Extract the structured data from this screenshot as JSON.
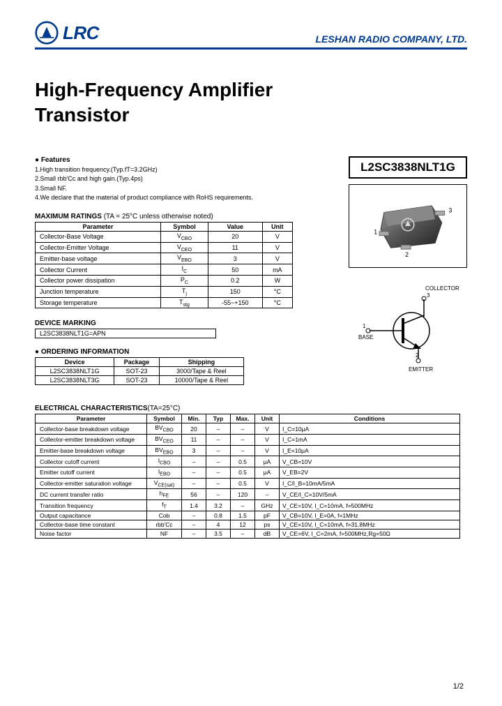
{
  "header": {
    "logo_text": "LRC",
    "company": "LESHAN RADIO COMPANY, LTD."
  },
  "title_line1": "High-Frequency Amplifier",
  "title_line2": "Transistor",
  "part_number": "L2SC3838NLT1G",
  "features": {
    "heading": "● Features",
    "items": [
      "1.High transition frequency.(Typ.fT=3.2GHz)",
      "2.Small rbb'Cc and high gain.(Typ.4ps)",
      "3.Small NF.",
      "4.We declare that the material of product compliance with RoHS requirements."
    ]
  },
  "max_ratings": {
    "heading": "MAXIMUM RATINGS",
    "note": " (TA = 25°C unless otherwise noted)",
    "cols": [
      "Parameter",
      "Symbol",
      "Value",
      "Unit"
    ],
    "rows": [
      [
        "Collector-Base Voltage",
        "V_CBO",
        "20",
        "V"
      ],
      [
        "Collector-Emitter Voltage",
        "V_CEO",
        "11",
        "V"
      ],
      [
        "Emitter-base voltage",
        "V_EBO",
        "3",
        "V"
      ],
      [
        "Collector Current",
        "I_C",
        "50",
        "mA"
      ],
      [
        "Collector power dissipation",
        "P_C",
        "0.2",
        "W"
      ],
      [
        "Junction temperature",
        "T_j",
        "150",
        "°C"
      ],
      [
        "Storage temperature",
        "T_stg",
        "-55~+150",
        "°C"
      ]
    ]
  },
  "device_marking": {
    "heading": "DEVICE MARKING",
    "value": "L2SC3838NLT1G=APN"
  },
  "ordering": {
    "heading": "● ORDERING INFORMATION",
    "cols": [
      "Device",
      "Package",
      "Shipping"
    ],
    "rows": [
      [
        "L2SC3838NLT1G",
        "SOT-23",
        "3000/Tape & Reel"
      ],
      [
        "L2SC3838NLT3G",
        "SOT-23",
        "10000/Tape & Reel"
      ]
    ]
  },
  "electrical": {
    "heading": "ELECTRICAL CHARACTERISTICS",
    "note": "(TA=25°C)",
    "cols": [
      "Parameter",
      "Symbol",
      "Min.",
      "Typ",
      "Max.",
      "Unit",
      "Conditions"
    ],
    "rows": [
      [
        "Collector-base breakdown voltage",
        "BV_CBO",
        "20",
        "–",
        "–",
        "V",
        "I_C=10μA"
      ],
      [
        "Collector-emitter breakdown voltage",
        "BV_CEO",
        "11",
        "–",
        "–",
        "V",
        "I_C=1mA"
      ],
      [
        "Emitter-base breakdown voltage",
        "BV_EBO",
        "3",
        "–",
        "–",
        "V",
        "I_E=10μA"
      ],
      [
        "Collector cutoff current",
        "I_CBO",
        "–",
        "–",
        "0.5",
        "μA",
        "V_CB=10V"
      ],
      [
        "Emitter cutoff current",
        "I_EBO",
        "–",
        "–",
        "0.5",
        "μA",
        "V_EB=2V"
      ],
      [
        "Collector-emitter saturation voltage",
        "V_CE(sat)",
        "–",
        "–",
        "0.5",
        "V",
        "I_C/I_B=10mA/5mA"
      ],
      [
        "DC current transfer ratio",
        "h_FE",
        "56",
        "–",
        "120",
        "–",
        "V_CE/I_C=10V/5mA"
      ],
      [
        "Transition frequency",
        "f_T",
        "1.4",
        "3.2",
        "–",
        "GHz",
        "V_CE=10V, I_C=10mA, f=500MHz"
      ],
      [
        "Output capacitance",
        "Cob",
        "–",
        "0.8",
        "1.5",
        "pF",
        "V_CB=10V, I_E=0A, f=1MHz"
      ],
      [
        "Collector-base time constant",
        "rbb'Cc",
        "–",
        "4",
        "12",
        "ps",
        "V_CE=10V, I_C=10mA, f=31.8MHz"
      ],
      [
        "Noise factor",
        "NF",
        "–",
        "3.5",
        "–",
        "dB",
        "V_CE=6V, I_C=2mA, f=500MHz,Rg=50Ω"
      ]
    ]
  },
  "schematic_labels": {
    "collector": "COLLECTOR",
    "base": "BASE",
    "emitter": "EMITTER",
    "p1": "1",
    "p2": "2",
    "p3": "3"
  },
  "pkg_labels": {
    "p1": "1",
    "p2": "2",
    "p3": "3"
  },
  "page_num": "1/2",
  "colors": {
    "brand": "#003a8c",
    "line": "#000000",
    "bg": "#ffffff"
  }
}
